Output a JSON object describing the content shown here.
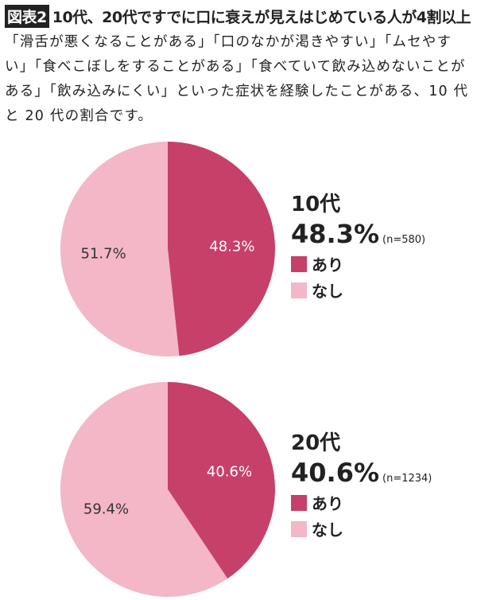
{
  "title": {
    "badge": "図表2",
    "text": "10代、20代ですでに口に衰えが見えはじめている人が4割以上"
  },
  "description": "「滑舌が悪くなることがある」「口のなかが渇きやすい」「ムセやすい」「食べこぼしをすることがある」「食べていて飲み込めないことがある」「飲み込みにくい」といった症状を経験したことがある、10 代と 20 代の割合です。",
  "colors": {
    "ari": "#c7406a",
    "nashi": "#f3b7c7"
  },
  "chart_data": [
    {
      "type": "pie",
      "title": "10代",
      "headline": "48.3%",
      "n": "(n=580)",
      "categories": [
        "あり",
        "なし"
      ],
      "values": [
        48.3,
        51.7
      ],
      "labels": [
        "48.3%",
        "51.7%"
      ],
      "legend": "right"
    },
    {
      "type": "pie",
      "title": "20代",
      "headline": "40.6%",
      "n": "(n=1234)",
      "categories": [
        "あり",
        "なし"
      ],
      "values": [
        40.6,
        59.4
      ],
      "labels": [
        "40.6%",
        "59.4%"
      ],
      "legend": "right"
    }
  ]
}
